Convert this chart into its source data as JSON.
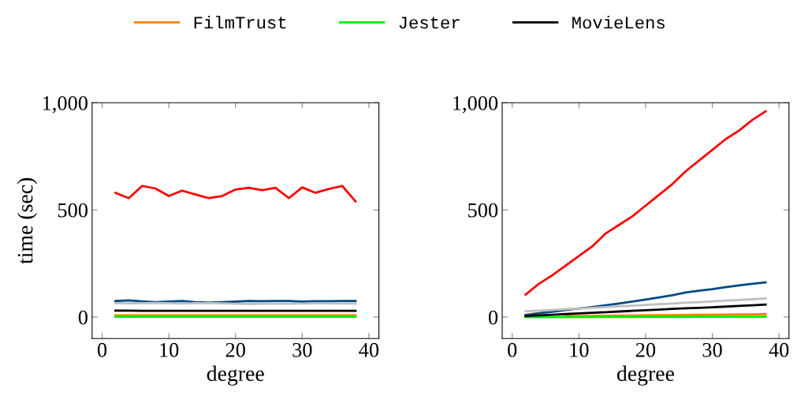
{
  "chart_data": [
    {
      "type": "line",
      "xlabel": "degree",
      "ylabel": "time (sec)",
      "x": [
        2,
        4,
        6,
        8,
        10,
        12,
        14,
        16,
        18,
        20,
        22,
        24,
        26,
        28,
        30,
        32,
        34,
        36,
        38
      ],
      "xlim": [
        -1.5,
        41.5
      ],
      "xticks": [
        0,
        10,
        20,
        30,
        40
      ],
      "ylim": [
        -100,
        1000
      ],
      "yticks": [
        0,
        500,
        {
          "value": 1000,
          "label": "1,000"
        }
      ],
      "grid": false,
      "legend": "top",
      "marker": "none",
      "line_style": "solid",
      "series": [
        {
          "color": "#004a85",
          "values": [
            75,
            78,
            73,
            70,
            72,
            75,
            70,
            68,
            70,
            72,
            75,
            74,
            75,
            75,
            72,
            74,
            74,
            75,
            75
          ]
        },
        {
          "color": "#ff0000",
          "values": [
            580,
            555,
            612,
            600,
            565,
            590,
            572,
            555,
            565,
            595,
            603,
            592,
            603,
            555,
            605,
            580,
            598,
            612,
            540
          ]
        },
        {
          "name": "FilmTrust",
          "color": "#ff8000",
          "values": [
            8,
            8,
            8,
            8,
            8,
            8,
            8,
            8,
            8,
            8,
            8,
            8,
            8,
            8,
            8,
            8,
            8,
            8,
            8
          ]
        },
        {
          "name": "Jester",
          "color": "#00ee00",
          "values": [
            2,
            2,
            2,
            2,
            2,
            2,
            2,
            2,
            2,
            2,
            2,
            2,
            2,
            2,
            2,
            2,
            2,
            2,
            2
          ]
        },
        {
          "name": "MovieLens",
          "color": "#000000",
          "values": [
            30,
            30,
            29,
            29,
            29,
            29,
            29,
            29,
            29,
            29,
            29,
            29,
            29,
            29,
            29,
            29,
            29,
            29,
            29
          ]
        },
        {
          "color": "#c0c0c0",
          "values": [
            65,
            64,
            65,
            66,
            65,
            63,
            65,
            66,
            64,
            62,
            61,
            62,
            63,
            62,
            63,
            64,
            64,
            63,
            63
          ]
        }
      ]
    },
    {
      "type": "line",
      "xlabel": "degree",
      "x": [
        2,
        4,
        6,
        8,
        10,
        12,
        14,
        16,
        18,
        20,
        22,
        24,
        26,
        28,
        30,
        32,
        34,
        36,
        38
      ],
      "xlim": [
        -1.5,
        41.5
      ],
      "xticks": [
        0,
        10,
        20,
        30,
        40
      ],
      "ylim": [
        -100,
        1000
      ],
      "yticks": [
        0,
        500,
        {
          "value": 1000,
          "label": "1,000"
        }
      ],
      "grid": false,
      "marker": "none",
      "line_style": "solid",
      "series": [
        {
          "color": "#004a85",
          "values": [
            10,
            18,
            25,
            33,
            40,
            47,
            55,
            63,
            72,
            82,
            92,
            102,
            115,
            123,
            130,
            140,
            148,
            155,
            162
          ]
        },
        {
          "color": "#ff0000",
          "values": [
            105,
            155,
            195,
            240,
            285,
            330,
            390,
            430,
            470,
            520,
            570,
            620,
            680,
            730,
            780,
            830,
            870,
            920,
            960
          ]
        },
        {
          "color": "#ff8000",
          "values": [
            null,
            null,
            null,
            4,
            5,
            5,
            6,
            7,
            7,
            8,
            9,
            9,
            10,
            11,
            11,
            12,
            13,
            13,
            14
          ]
        },
        {
          "color": "#00ee00",
          "values": [
            0,
            0,
            0,
            0,
            1,
            1,
            1,
            1,
            1,
            1,
            1,
            1,
            1,
            2,
            2,
            2,
            2,
            2,
            2
          ]
        },
        {
          "color": "#000000",
          "values": [
            5,
            8,
            11,
            14,
            17,
            20,
            23,
            26,
            29,
            32,
            35,
            38,
            41,
            43,
            46,
            49,
            52,
            55,
            58
          ]
        },
        {
          "color": "#c0c0c0",
          "values": [
            27,
            30,
            33,
            37,
            40,
            43,
            47,
            50,
            53,
            57,
            60,
            63,
            67,
            70,
            73,
            77,
            80,
            83,
            87
          ]
        }
      ]
    }
  ]
}
